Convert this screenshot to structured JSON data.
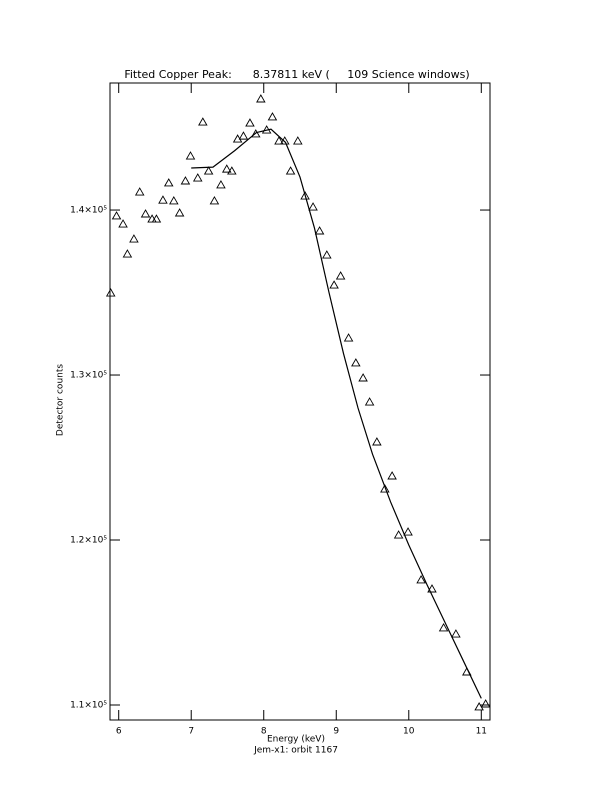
{
  "chart_data": {
    "type": "scatter",
    "title": "Fitted Copper Peak:      8.37811 keV (     109 Science windows)",
    "x_label": "Energy (keV)",
    "subtitle": "Jem-x1: orbit 1167",
    "y_label": "Detector counts",
    "xlim": [
      5.88,
      11.12
    ],
    "ylim": [
      109090,
      147700
    ],
    "xticks": [
      6,
      7,
      8,
      9,
      10,
      11
    ],
    "yticks": [
      {
        "value": 110000,
        "label": "1.1×10⁵"
      },
      {
        "value": 120000,
        "label": "1.2×10⁵"
      },
      {
        "value": 130000,
        "label": "1.3×10⁵"
      },
      {
        "value": 140000,
        "label": "1.4×10⁵"
      }
    ],
    "series": [
      {
        "mode": "markers",
        "color": "#000000",
        "x": [
          5.89,
          5.97,
          6.06,
          6.12,
          6.21,
          6.29,
          6.37,
          6.46,
          6.52,
          6.61,
          6.69,
          6.76,
          6.84,
          6.92,
          6.99,
          7.09,
          7.16,
          7.24,
          7.32,
          7.41,
          7.49,
          7.56,
          7.64,
          7.72,
          7.81,
          7.89,
          7.96,
          8.04,
          8.12,
          8.21,
          8.29,
          8.37,
          8.47,
          8.57,
          8.68,
          8.77,
          8.87,
          8.97,
          9.06,
          9.17,
          9.27,
          9.37,
          9.46,
          9.56,
          9.67,
          9.77,
          9.86,
          9.99,
          10.17,
          10.32,
          10.48,
          10.65,
          10.8,
          10.97,
          11.06
        ],
        "values": [
          134970,
          139640,
          139150,
          137330,
          138240,
          141090,
          139760,
          139450,
          139450,
          140600,
          141640,
          140550,
          139820,
          141760,
          143270,
          141940,
          145330,
          142360,
          140550,
          141520,
          142480,
          142360,
          144300,
          144480,
          145270,
          144610,
          146730,
          144850,
          145640,
          144180,
          144180,
          142360,
          144180,
          140850,
          140180,
          138730,
          137270,
          135450,
          136000,
          132240,
          130730,
          129820,
          128360,
          125940,
          123090,
          123880,
          120300,
          120480,
          117580,
          117030,
          114670,
          114300,
          112000,
          109880,
          110060
        ]
      },
      {
        "mode": "line",
        "color": "#000000",
        "x": [
          7.0,
          7.3,
          7.6,
          7.9,
          8.1,
          8.3,
          8.5,
          8.7,
          8.9,
          9.1,
          9.3,
          9.5,
          9.75,
          10.0,
          10.25,
          10.5,
          10.75,
          11.0
        ],
        "values": [
          142550,
          142600,
          143600,
          144700,
          144900,
          144100,
          142000,
          138900,
          135000,
          131300,
          128000,
          125200,
          122300,
          119700,
          117300,
          115000,
          112700,
          110400
        ]
      }
    ]
  }
}
